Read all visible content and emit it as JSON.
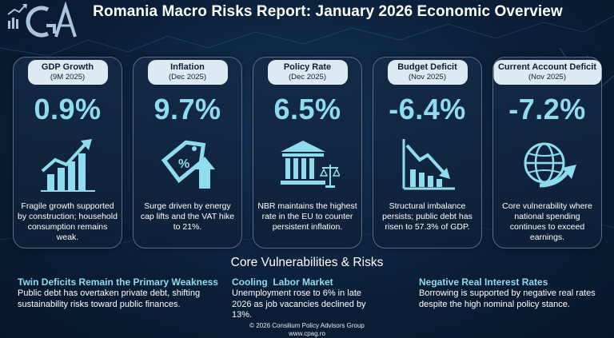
{
  "header": {
    "title": "Romania Macro Risks Report: January 2026 Economic Overview",
    "logo_text": "CGA"
  },
  "cards": [
    {
      "title": "GDP Growth",
      "period": "(9M 2025)",
      "value": "0.9%",
      "icon": "growth-bar-chart-icon",
      "description": "Fragile growth supported by construction; household consumption remains weak."
    },
    {
      "title": "Inflation",
      "period": "(Dec 2025)",
      "value": "9.7%",
      "icon": "price-tag-up-arrow-icon",
      "description": "Surge driven by energy cap lifts and the VAT hike to 21%."
    },
    {
      "title": "Policy Rate",
      "period": "(Dec 2025)",
      "value": "6.5%",
      "icon": "central-bank-scales-icon",
      "description": "NBR maintains the highest rate in the EU to counter persistent inflation."
    },
    {
      "title": "Budget Deficit",
      "period": "(Nov 2025)",
      "value": "-6.4%",
      "icon": "declining-chart-icon",
      "description": "Structural imbalance persists; public debt has risen to 57.3% of GDP."
    },
    {
      "title": "Current Account Deficit",
      "period": "(Nov 2025)",
      "value": "-7.2%",
      "icon": "globe-arrow-icon",
      "description": "Core vulnerability where national spending continues to exceed earnings."
    }
  ],
  "risks": {
    "title": "Core Vulnerabilities & Risks",
    "items": [
      {
        "title": "Twin Deficits Remain the Primary Weakness",
        "text": "Public debt has overtaken private debt, shifting sustainability risks toward public finances."
      },
      {
        "title": "Cooling  Labor Market",
        "text": "Unemployment rose to 6% in late 2026 as job vacancies declined by 13%."
      },
      {
        "title": "Negative Real Interest Rates",
        "text": "Borrowing is supported by negative real rates despite the high nominal policy stance."
      }
    ]
  },
  "footer": {
    "copyright": "© 2026 Consilium Policy Advisors Group",
    "website": "www.cpag.ro"
  },
  "colors": {
    "accent": "#8fdcef",
    "background": "#0b1f38",
    "pill": "#dfe9f2"
  }
}
